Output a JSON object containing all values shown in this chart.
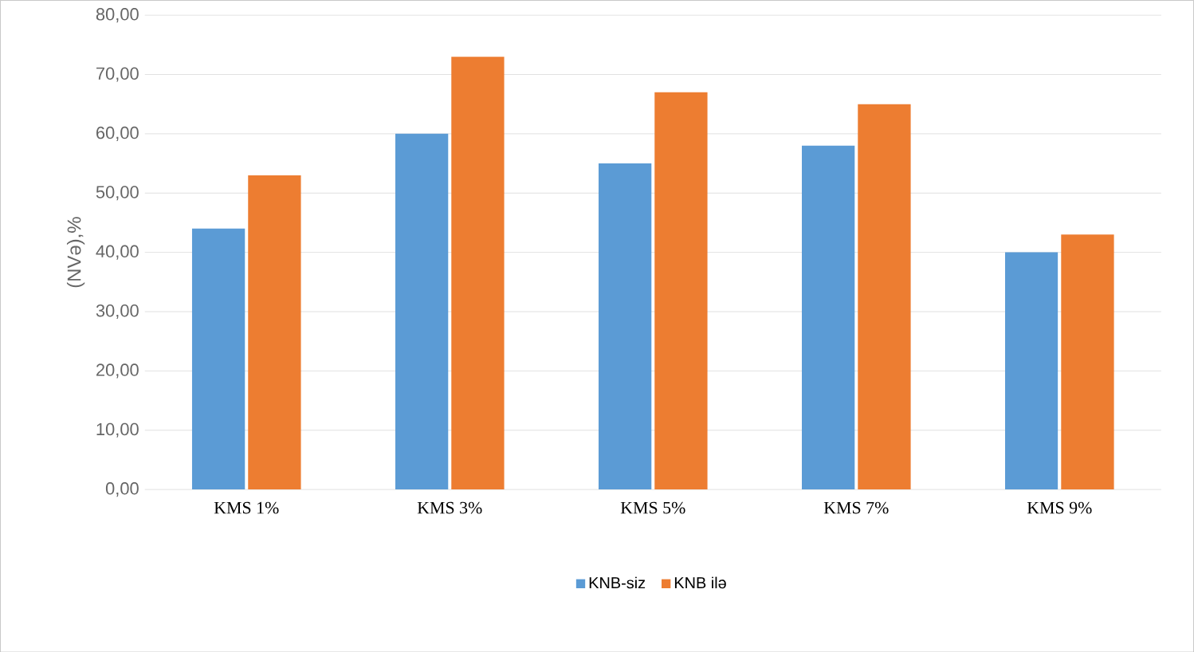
{
  "chart_data": {
    "type": "bar",
    "ylabel": "(NVə),%",
    "categories": [
      "KMS 1%",
      "KMS 3%",
      "KMS 5%",
      "KMS 7%",
      "KMS 9%"
    ],
    "series": [
      {
        "name": "KNB-siz",
        "color": "#5b9bd5",
        "values": [
          44,
          60,
          55,
          58,
          40
        ]
      },
      {
        "name": "KNB ilə",
        "color": "#ed7d31",
        "values": [
          53,
          73,
          67,
          65,
          43
        ]
      }
    ],
    "ylim": [
      0,
      80
    ],
    "yticks": [
      {
        "value": 0,
        "label": "0,00"
      },
      {
        "value": 10,
        "label": "10,00"
      },
      {
        "value": 20,
        "label": "20,00"
      },
      {
        "value": 30,
        "label": "30,00"
      },
      {
        "value": 40,
        "label": "40,00"
      },
      {
        "value": 50,
        "label": "50,00"
      },
      {
        "value": 60,
        "label": "60,00"
      },
      {
        "value": 70,
        "label": "70,00"
      },
      {
        "value": 80,
        "label": "80,00"
      }
    ],
    "grid": "y",
    "legend": "bottom"
  }
}
